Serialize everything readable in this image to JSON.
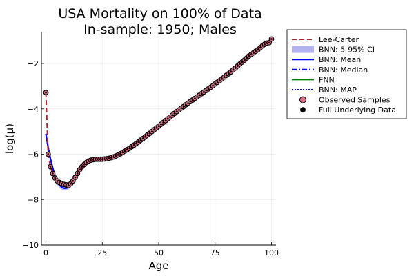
{
  "chart_data": {
    "type": "line",
    "title_line1": "USA Mortality on 100% of Data",
    "title_line2": "In-sample: 1950; Males",
    "xlabel": "Age",
    "ylabel": "log(μ)",
    "xlim": [
      -2,
      102
    ],
    "ylim": [
      -10,
      -0.6
    ],
    "xticks": [
      0,
      25,
      50,
      75,
      100
    ],
    "xtick_labels": [
      "0",
      "25",
      "50",
      "75",
      "100"
    ],
    "yticks": [
      -10,
      -8,
      -6,
      -4,
      -2
    ],
    "ytick_labels": [
      "−10",
      "−8",
      "−6",
      "−4",
      "−2"
    ],
    "grid": true,
    "legend_position": "outer-top-right",
    "colors": {
      "lee_carter": "#b2272f",
      "ci": "#b3b3f1",
      "bnn": "#0000ff",
      "fnn": "#008000",
      "observed": "#e26f8a",
      "full": "#000000"
    },
    "legend": [
      {
        "label": "Lee-Carter",
        "style": "dashed-line",
        "color": "#b2272f"
      },
      {
        "label": "BNN: 5-95% CI",
        "style": "band",
        "color": "#b3b3f1"
      },
      {
        "label": "BNN: Mean",
        "style": "solid-line",
        "color": "#0000ff"
      },
      {
        "label": "BNN: Median",
        "style": "dashdot-line",
        "color": "#0000ff"
      },
      {
        "label": "FNN",
        "style": "solid-line",
        "color": "#008000"
      },
      {
        "label": "BNN: MAP",
        "style": "dotted-line",
        "color": "#0000ff"
      },
      {
        "label": "Observed Samples",
        "style": "marker",
        "color": "#e26f8a"
      },
      {
        "label": "Full Underlying Data",
        "style": "marker",
        "color": "#000000"
      }
    ],
    "observed_samples": {
      "x": [
        0,
        1,
        2,
        3,
        4,
        5,
        6,
        7,
        8,
        9,
        10,
        11,
        12,
        13,
        14,
        15,
        16,
        17,
        18,
        19,
        20,
        21,
        22,
        23,
        24,
        25,
        26,
        27,
        28,
        29,
        30,
        31,
        32,
        33,
        34,
        35,
        36,
        37,
        38,
        39,
        40,
        41,
        42,
        43,
        44,
        45,
        46,
        47,
        48,
        49,
        50,
        51,
        52,
        53,
        54,
        55,
        56,
        57,
        58,
        59,
        60,
        61,
        62,
        63,
        64,
        65,
        66,
        67,
        68,
        69,
        70,
        71,
        72,
        73,
        74,
        75,
        76,
        77,
        78,
        79,
        80,
        81,
        82,
        83,
        84,
        85,
        86,
        87,
        88,
        89,
        90,
        91,
        92,
        93,
        94,
        95,
        96,
        97,
        98,
        99,
        100
      ],
      "y": [
        -3.28,
        -6.0,
        -6.55,
        -6.85,
        -7.05,
        -7.18,
        -7.25,
        -7.3,
        -7.33,
        -7.35,
        -7.38,
        -7.3,
        -7.18,
        -7.02,
        -6.85,
        -6.68,
        -6.55,
        -6.45,
        -6.36,
        -6.3,
        -6.26,
        -6.24,
        -6.22,
        -6.22,
        -6.22,
        -6.22,
        -6.21,
        -6.2,
        -6.18,
        -6.15,
        -6.12,
        -6.08,
        -6.03,
        -5.98,
        -5.92,
        -5.86,
        -5.8,
        -5.74,
        -5.67,
        -5.6,
        -5.53,
        -5.46,
        -5.38,
        -5.31,
        -5.23,
        -5.15,
        -5.08,
        -5.0,
        -4.92,
        -4.84,
        -4.76,
        -4.68,
        -4.6,
        -4.52,
        -4.44,
        -4.36,
        -4.28,
        -4.2,
        -4.12,
        -4.05,
        -3.97,
        -3.9,
        -3.82,
        -3.75,
        -3.68,
        -3.61,
        -3.54,
        -3.47,
        -3.4,
        -3.33,
        -3.26,
        -3.19,
        -3.12,
        -3.05,
        -2.98,
        -2.9,
        -2.83,
        -2.76,
        -2.68,
        -2.6,
        -2.52,
        -2.45,
        -2.37,
        -2.28,
        -2.2,
        -2.11,
        -2.02,
        -1.94,
        -1.85,
        -1.76,
        -1.67,
        -1.6,
        -1.53,
        -1.46,
        -1.39,
        -1.3,
        -1.22,
        -1.15,
        -1.1,
        -1.08,
        -0.92
      ]
    },
    "lee_carter": {
      "x": [
        0,
        1,
        2,
        3,
        4,
        5,
        6,
        7,
        8,
        9,
        10,
        11,
        12,
        13,
        14,
        15,
        16,
        17,
        18,
        19,
        20,
        21,
        22,
        23,
        24,
        25,
        26,
        27,
        28,
        29,
        30,
        31,
        32,
        33,
        34,
        35,
        36,
        37,
        38,
        39,
        40,
        41,
        42,
        43,
        44,
        45,
        46,
        47,
        48,
        49,
        50,
        51,
        52,
        53,
        54,
        55,
        56,
        57,
        58,
        59,
        60,
        61,
        62,
        63,
        64,
        65,
        66,
        67,
        68,
        69,
        70,
        71,
        72,
        73,
        74,
        75,
        76,
        77,
        78,
        79,
        80,
        81,
        82,
        83,
        84,
        85,
        86,
        87,
        88,
        89,
        90,
        91,
        92,
        93,
        94,
        95,
        96,
        97,
        98,
        99,
        100
      ],
      "y": [
        -3.28,
        -6.0,
        -6.55,
        -6.85,
        -7.05,
        -7.18,
        -7.25,
        -7.3,
        -7.33,
        -7.35,
        -7.38,
        -7.3,
        -7.18,
        -7.02,
        -6.85,
        -6.68,
        -6.55,
        -6.45,
        -6.36,
        -6.3,
        -6.26,
        -6.24,
        -6.22,
        -6.22,
        -6.22,
        -6.22,
        -6.21,
        -6.2,
        -6.18,
        -6.15,
        -6.12,
        -6.08,
        -6.03,
        -5.98,
        -5.92,
        -5.86,
        -5.8,
        -5.74,
        -5.67,
        -5.6,
        -5.53,
        -5.46,
        -5.38,
        -5.31,
        -5.23,
        -5.15,
        -5.08,
        -5.0,
        -4.92,
        -4.84,
        -4.76,
        -4.68,
        -4.6,
        -4.52,
        -4.44,
        -4.36,
        -4.28,
        -4.2,
        -4.12,
        -4.05,
        -3.97,
        -3.9,
        -3.82,
        -3.75,
        -3.68,
        -3.61,
        -3.54,
        -3.47,
        -3.4,
        -3.33,
        -3.26,
        -3.19,
        -3.12,
        -3.05,
        -2.98,
        -2.9,
        -2.83,
        -2.76,
        -2.68,
        -2.6,
        -2.52,
        -2.45,
        -2.37,
        -2.28,
        -2.2,
        -2.11,
        -2.02,
        -1.94,
        -1.85,
        -1.76,
        -1.67,
        -1.6,
        -1.53,
        -1.46,
        -1.39,
        -1.3,
        -1.22,
        -1.15,
        -1.1,
        -1.08,
        -0.92
      ]
    },
    "bnn_fit": {
      "x": [
        0,
        1,
        2,
        3,
        4,
        5,
        6,
        7,
        8,
        9,
        10,
        11,
        12,
        13,
        14,
        15,
        16,
        17,
        18,
        19,
        20,
        22,
        24,
        26,
        28,
        30
      ],
      "y": [
        -5.1,
        -5.7,
        -6.2,
        -6.6,
        -6.95,
        -7.2,
        -7.35,
        -7.45,
        -7.5,
        -7.5,
        -7.45,
        -7.35,
        -7.2,
        -7.02,
        -6.85,
        -6.68,
        -6.55,
        -6.45,
        -6.36,
        -6.3,
        -6.26,
        -6.22,
        -6.22,
        -6.21,
        -6.18,
        -6.12
      ]
    },
    "bnn_ci": {
      "x": [
        0,
        1,
        2,
        3,
        4,
        5,
        6,
        7,
        8,
        9,
        10,
        11,
        12,
        13,
        14,
        15
      ],
      "upper": [
        -5.0,
        -5.55,
        -6.05,
        -6.45,
        -6.8,
        -7.05,
        -7.22,
        -7.32,
        -7.38,
        -7.4,
        -7.36,
        -7.27,
        -7.13,
        -6.97,
        -6.8,
        -6.64
      ],
      "lower": [
        -5.2,
        -5.85,
        -6.35,
        -6.75,
        -7.1,
        -7.35,
        -7.48,
        -7.57,
        -7.6,
        -7.6,
        -7.55,
        -7.44,
        -7.28,
        -7.08,
        -6.9,
        -6.72
      ]
    }
  }
}
